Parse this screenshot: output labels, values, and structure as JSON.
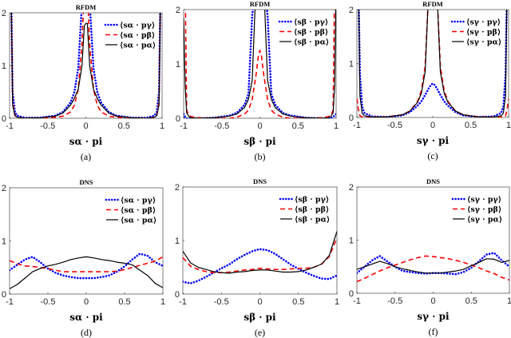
{
  "chart_data": [
    {
      "type": "line",
      "panel": "a",
      "title": "RFDM",
      "caption": "(a)",
      "xlabel": "sα · pi",
      "ylabel": "",
      "xlim": [
        -1,
        1
      ],
      "ylim": [
        0,
        2
      ],
      "xticks": [
        "-1",
        "-0.5",
        "0",
        "0.5",
        "1"
      ],
      "yticks": [
        "0",
        "1",
        "2"
      ],
      "legend_position": "top-right",
      "x": [
        -1,
        -0.98,
        -0.96,
        -0.93,
        -0.9,
        -0.8,
        -0.6,
        -0.4,
        -0.3,
        -0.2,
        -0.15,
        -0.1,
        -0.05,
        -0.02,
        0,
        0.02,
        0.05,
        0.1,
        0.15,
        0.2,
        0.3,
        0.4,
        0.6,
        0.8,
        0.9,
        0.93,
        0.96,
        0.98,
        1
      ],
      "series": [
        {
          "name": "⟨sα · pγ⟩",
          "color": "#0000ff",
          "style": "dotted",
          "values": [
            2.5,
            2.5,
            0.5,
            0.12,
            0.05,
            0.01,
            0.01,
            0.05,
            0.12,
            0.3,
            0.5,
            0.95,
            2.2,
            2.5,
            2.5,
            2.5,
            2.2,
            0.95,
            0.5,
            0.3,
            0.12,
            0.05,
            0.01,
            0.01,
            0.05,
            0.12,
            0.5,
            2.5,
            2.5
          ]
        },
        {
          "name": "⟨sα · pβ⟩",
          "color": "#ff0000",
          "style": "dashed",
          "values": [
            2.5,
            2.5,
            0.3,
            0.05,
            0.02,
            0,
            0,
            0.02,
            0.04,
            0.12,
            0.25,
            0.55,
            1.4,
            2.5,
            2.5,
            2.5,
            1.4,
            0.55,
            0.25,
            0.12,
            0.04,
            0.02,
            0,
            0,
            0.02,
            0.05,
            0.3,
            2.5,
            2.5
          ]
        },
        {
          "name": "⟨sα · pα⟩",
          "color": "#000000",
          "style": "solid",
          "values": [
            2.5,
            2.5,
            0.25,
            0.05,
            0.02,
            0,
            0.01,
            0.04,
            0.1,
            0.25,
            0.38,
            0.55,
            1.0,
            1.75,
            1.8,
            1.8,
            1.0,
            0.55,
            0.38,
            0.25,
            0.1,
            0.04,
            0.01,
            0,
            0.02,
            0.05,
            0.25,
            2.5,
            2.5
          ]
        }
      ]
    },
    {
      "type": "line",
      "panel": "b",
      "title": "RFDM",
      "caption": "(b)",
      "xlabel": "sβ · pi",
      "ylabel": "",
      "xlim": [
        -1,
        1
      ],
      "ylim": [
        0,
        2
      ],
      "xticks": [
        "-1",
        "-0.5",
        "0",
        "0.5",
        "1"
      ],
      "yticks": [
        "0",
        "1",
        "2"
      ],
      "legend_position": "top-right",
      "x": [
        -1,
        -0.98,
        -0.96,
        -0.93,
        -0.9,
        -0.8,
        -0.6,
        -0.4,
        -0.3,
        -0.2,
        -0.15,
        -0.1,
        -0.05,
        -0.02,
        0,
        0.02,
        0.05,
        0.1,
        0.15,
        0.2,
        0.3,
        0.4,
        0.6,
        0.8,
        0.9,
        0.93,
        0.96,
        0.98,
        1
      ],
      "series": [
        {
          "name": "⟨sβ · pγ⟩",
          "color": "#0000ff",
          "style": "dotted",
          "values": [
            0.08,
            0.02,
            0,
            0,
            0,
            0,
            0.01,
            0.05,
            0.1,
            0.25,
            0.45,
            1.9,
            2.5,
            2.5,
            2.5,
            2.5,
            2.5,
            1.9,
            0.45,
            0.25,
            0.1,
            0.05,
            0.01,
            0,
            0,
            0,
            0.02,
            0.05,
            0.08
          ]
        },
        {
          "name": "⟨sβ · pβ⟩",
          "color": "#ff0000",
          "style": "dashed",
          "values": [
            2.5,
            2.5,
            0.15,
            0.05,
            0.03,
            0.01,
            0,
            0,
            0.02,
            0.08,
            0.15,
            0.35,
            0.8,
            1.15,
            1.25,
            1.15,
            0.8,
            0.35,
            0.15,
            0.08,
            0.02,
            0,
            0,
            0.01,
            0.03,
            0.05,
            0.15,
            2.5,
            2.5
          ]
        },
        {
          "name": "⟨sβ · pα⟩",
          "color": "#000000",
          "style": "solid",
          "values": [
            1.85,
            0.6,
            0.1,
            0.03,
            0.01,
            0,
            0.01,
            0.04,
            0.08,
            0.2,
            0.35,
            0.7,
            2.5,
            2.5,
            2.5,
            2.5,
            2.5,
            0.7,
            0.35,
            0.2,
            0.08,
            0.04,
            0.01,
            0,
            0.01,
            0.03,
            0.1,
            0.6,
            2.5
          ]
        }
      ]
    },
    {
      "type": "line",
      "panel": "c",
      "title": "RFDM",
      "caption": "(c)",
      "xlabel": "sγ · pi",
      "ylabel": "",
      "xlim": [
        -1,
        1
      ],
      "ylim": [
        0,
        2
      ],
      "xticks": [
        "-1",
        "-0.5",
        "0",
        "0.5",
        "1"
      ],
      "yticks": [
        "0",
        "1",
        "2"
      ],
      "legend_position": "top-right",
      "x": [
        -1,
        -0.98,
        -0.96,
        -0.93,
        -0.9,
        -0.8,
        -0.6,
        -0.4,
        -0.3,
        -0.2,
        -0.15,
        -0.1,
        -0.05,
        -0.02,
        0,
        0.02,
        0.05,
        0.1,
        0.15,
        0.2,
        0.3,
        0.4,
        0.6,
        0.8,
        0.9,
        0.93,
        0.96,
        0.98,
        1
      ],
      "series": [
        {
          "name": "⟨sγ · pγ⟩",
          "color": "#0000ff",
          "style": "dotted",
          "values": [
            2.5,
            2.5,
            0.8,
            0.2,
            0.08,
            0.02,
            0.01,
            0.04,
            0.1,
            0.22,
            0.3,
            0.42,
            0.55,
            0.61,
            0.63,
            0.61,
            0.55,
            0.42,
            0.3,
            0.22,
            0.1,
            0.04,
            0.01,
            0.02,
            0.08,
            0.2,
            0.8,
            2.5,
            2.5
          ]
        },
        {
          "name": "⟨sγ · pβ⟩",
          "color": "#ff0000",
          "style": "dashed",
          "values": [
            0.35,
            0.15,
            0.03,
            0.01,
            0.01,
            0.01,
            0.01,
            0.05,
            0.12,
            0.3,
            0.5,
            0.95,
            2.5,
            2.5,
            2.5,
            2.5,
            2.5,
            0.95,
            0.5,
            0.3,
            0.12,
            0.05,
            0.01,
            0.01,
            0.01,
            0.01,
            0.03,
            0.15,
            0.35
          ]
        },
        {
          "name": "⟨sγ · pα⟩",
          "color": "#000000",
          "style": "solid",
          "values": [
            2.5,
            2.5,
            0.4,
            0.08,
            0.03,
            0.01,
            0.01,
            0.05,
            0.12,
            0.28,
            0.45,
            0.85,
            2.5,
            2.5,
            2.5,
            2.5,
            2.5,
            0.85,
            0.45,
            0.28,
            0.12,
            0.05,
            0.01,
            0.01,
            0.03,
            0.08,
            0.4,
            2.5,
            2.5
          ]
        }
      ]
    },
    {
      "type": "line",
      "panel": "d",
      "title": "DNS",
      "caption": "(d)",
      "xlabel": "sα · pi",
      "ylabel": "",
      "xlim": [
        -1,
        1
      ],
      "ylim": [
        0,
        2
      ],
      "xticks": [
        "-1",
        "-0.5",
        "0",
        "0.5",
        "1"
      ],
      "yticks": [
        "0",
        "1",
        "2"
      ],
      "legend_position": "top-right",
      "x": [
        -1,
        -0.9,
        -0.8,
        -0.7,
        -0.6,
        -0.5,
        -0.4,
        -0.3,
        -0.2,
        -0.1,
        0,
        0.1,
        0.2,
        0.3,
        0.4,
        0.5,
        0.6,
        0.7,
        0.8,
        0.9,
        1
      ],
      "series": [
        {
          "name": "⟨sα · pγ⟩",
          "color": "#0000ff",
          "style": "dotted",
          "values": [
            0.45,
            0.55,
            0.65,
            0.7,
            0.6,
            0.48,
            0.4,
            0.35,
            0.32,
            0.3,
            0.3,
            0.3,
            0.32,
            0.35,
            0.42,
            0.52,
            0.65,
            0.76,
            0.72,
            0.6,
            0.53
          ]
        },
        {
          "name": "⟨sα · pβ⟩",
          "color": "#ff0000",
          "style": "dashed",
          "values": [
            0.63,
            0.57,
            0.53,
            0.52,
            0.5,
            0.48,
            0.45,
            0.42,
            0.42,
            0.42,
            0.42,
            0.42,
            0.42,
            0.42,
            0.43,
            0.46,
            0.5,
            0.54,
            0.58,
            0.62,
            0.7
          ]
        },
        {
          "name": "⟨sα · pα⟩",
          "color": "#000000",
          "style": "solid",
          "values": [
            0.1,
            0.18,
            0.3,
            0.42,
            0.48,
            0.53,
            0.56,
            0.6,
            0.65,
            0.68,
            0.7,
            0.68,
            0.65,
            0.63,
            0.6,
            0.58,
            0.55,
            0.45,
            0.35,
            0.2,
            0.12
          ]
        }
      ]
    },
    {
      "type": "line",
      "panel": "e",
      "title": "DNS",
      "caption": "(e)",
      "xlabel": "sβ · pi",
      "ylabel": "",
      "xlim": [
        -1,
        1
      ],
      "ylim": [
        0,
        2
      ],
      "xticks": [
        "-1",
        "-0.5",
        "0",
        "0.5",
        "1"
      ],
      "yticks": [
        "0",
        "1",
        "2"
      ],
      "legend_position": "top-right",
      "x": [
        -1,
        -0.9,
        -0.8,
        -0.7,
        -0.6,
        -0.5,
        -0.4,
        -0.3,
        -0.2,
        -0.1,
        0,
        0.1,
        0.2,
        0.3,
        0.4,
        0.5,
        0.6,
        0.7,
        0.8,
        0.9,
        1
      ],
      "series": [
        {
          "name": "⟨sβ · pγ⟩",
          "color": "#0000ff",
          "style": "dotted",
          "values": [
            0.23,
            0.2,
            0.25,
            0.32,
            0.4,
            0.48,
            0.55,
            0.65,
            0.73,
            0.8,
            0.84,
            0.82,
            0.75,
            0.65,
            0.55,
            0.47,
            0.4,
            0.34,
            0.29,
            0.28,
            0.35
          ]
        },
        {
          "name": "⟨sβ · pβ⟩",
          "color": "#ff0000",
          "style": "dashed",
          "values": [
            0.68,
            0.52,
            0.46,
            0.42,
            0.4,
            0.4,
            0.41,
            0.43,
            0.45,
            0.46,
            0.48,
            0.47,
            0.46,
            0.46,
            0.47,
            0.48,
            0.48,
            0.5,
            0.56,
            0.7,
            1.05
          ]
        },
        {
          "name": "⟨sβ · pα⟩",
          "color": "#000000",
          "style": "solid",
          "values": [
            0.8,
            0.58,
            0.5,
            0.46,
            0.42,
            0.4,
            0.39,
            0.41,
            0.42,
            0.44,
            0.45,
            0.45,
            0.43,
            0.41,
            0.41,
            0.42,
            0.45,
            0.5,
            0.56,
            0.72,
            1.17
          ]
        }
      ]
    },
    {
      "type": "line",
      "panel": "f",
      "title": "DNS",
      "caption": "(f)",
      "xlabel": "sγ · pi",
      "ylabel": "",
      "xlim": [
        -1,
        1
      ],
      "ylim": [
        0,
        2
      ],
      "xticks": [
        "-1",
        "-0.5",
        "0",
        "0.5",
        "1"
      ],
      "yticks": [
        "0",
        "1",
        "2"
      ],
      "legend_position": "top-right",
      "x": [
        -1,
        -0.9,
        -0.8,
        -0.7,
        -0.6,
        -0.5,
        -0.4,
        -0.3,
        -0.2,
        -0.1,
        0,
        0.1,
        0.2,
        0.3,
        0.4,
        0.5,
        0.6,
        0.7,
        0.8,
        0.9,
        1
      ],
      "series": [
        {
          "name": "⟨sγ · pγ⟩",
          "color": "#0000ff",
          "style": "dotted",
          "values": [
            0.38,
            0.5,
            0.62,
            0.7,
            0.6,
            0.5,
            0.42,
            0.4,
            0.38,
            0.37,
            0.38,
            0.38,
            0.37,
            0.36,
            0.4,
            0.48,
            0.6,
            0.73,
            0.76,
            0.62,
            0.5
          ]
        },
        {
          "name": "⟨sγ · pβ⟩",
          "color": "#ff0000",
          "style": "dashed",
          "values": [
            0.22,
            0.28,
            0.35,
            0.42,
            0.48,
            0.53,
            0.58,
            0.63,
            0.67,
            0.7,
            0.69,
            0.67,
            0.65,
            0.62,
            0.58,
            0.53,
            0.48,
            0.42,
            0.37,
            0.3,
            0.25
          ]
        },
        {
          "name": "⟨sγ · pα⟩",
          "color": "#000000",
          "style": "solid",
          "values": [
            0.45,
            0.5,
            0.55,
            0.6,
            0.56,
            0.5,
            0.46,
            0.43,
            0.4,
            0.38,
            0.38,
            0.38,
            0.4,
            0.42,
            0.45,
            0.52,
            0.58,
            0.65,
            0.64,
            0.58,
            0.62
          ]
        }
      ]
    }
  ]
}
